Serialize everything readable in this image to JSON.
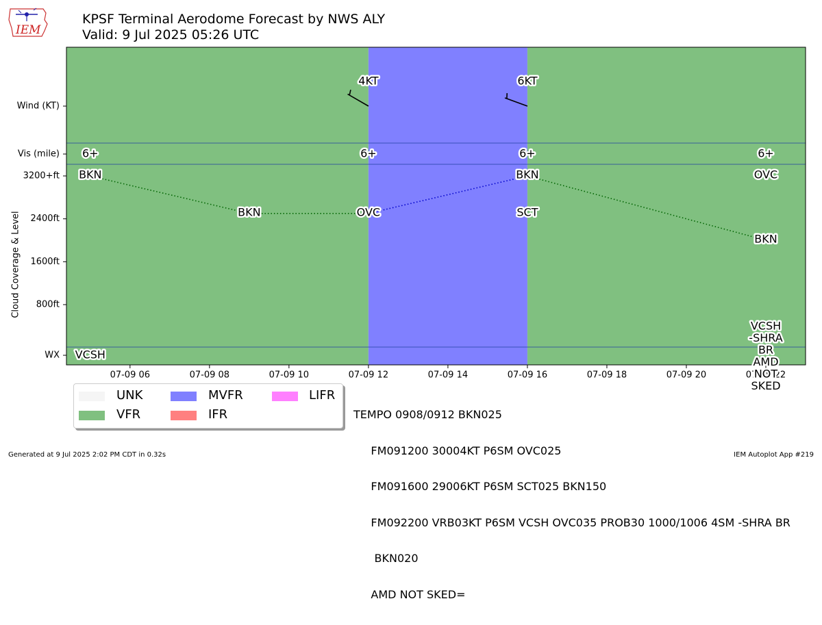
{
  "header": {
    "title_line1": "KPSF Terminal Aerodome Forecast by NWS ALY",
    "title_line2": "Valid: 9 Jul 2025 05:26 UTC"
  },
  "logo": {
    "text": "IEM"
  },
  "colors": {
    "UNK": "#f5f5f5",
    "VFR": "#80c080",
    "MVFR": "#8080ff",
    "IFR": "#ff8080",
    "LIFR": "#ff80ff"
  },
  "legend": [
    {
      "label": "UNK",
      "key": "UNK"
    },
    {
      "label": "MVFR",
      "key": "MVFR"
    },
    {
      "label": "LIFR",
      "key": "LIFR"
    },
    {
      "label": "VFR",
      "key": "VFR"
    },
    {
      "label": "IFR",
      "key": "IFR"
    }
  ],
  "taf_text": [
    "TEMPO 0908/0912 BKN025",
    "     FM091200 30004KT P6SM OVC025",
    "     FM091600 29006KT P6SM SCT025 BKN150",
    "     FM092200 VRB03KT P6SM VCSH OVC035 PROB30 1000/1006 4SM -SHRA BR",
    "      BKN020",
    "     AMD NOT SKED="
  ],
  "footer": {
    "left": "Generated at 9 Jul 2025 2:02 PM CDT in 0.32s",
    "right": "IEM Autoplot App #219"
  },
  "chart_data": {
    "type": "timeline",
    "x_axis": {
      "ticks": [
        "07-09 06",
        "07-09 08",
        "07-09 10",
        "07-09 12",
        "07-09 14",
        "07-09 16",
        "07-09 18",
        "07-09 20",
        "07-09 22"
      ],
      "tick_hours": [
        6,
        8,
        10,
        12,
        14,
        16,
        18,
        20,
        22
      ],
      "range_hours": [
        4.4,
        23.0
      ]
    },
    "y_axis": {
      "ylabel": "Cloud Coverage & Level",
      "row_labels": {
        "wind": "Wind (KT)",
        "vis": "Vis (mile)",
        "wx": "WX"
      },
      "cloud_ticks": [
        {
          "label": "3200+ft",
          "value": 3200
        },
        {
          "label": "2400ft",
          "value": 2400
        },
        {
          "label": "1600ft",
          "value": 1600
        },
        {
          "label": "800ft",
          "value": 800
        }
      ]
    },
    "categories": [
      {
        "start": 4.4,
        "end": 12.0,
        "category": "VFR"
      },
      {
        "start": 12.0,
        "end": 16.0,
        "category": "MVFR"
      },
      {
        "start": 16.0,
        "end": 23.0,
        "category": "VFR"
      }
    ],
    "wind": [
      {
        "hour": 12.0,
        "label": "4KT",
        "direction": 300,
        "speed": 4
      },
      {
        "hour": 16.0,
        "label": "6KT",
        "direction": 290,
        "speed": 6
      }
    ],
    "visibility": [
      {
        "hour": 5.0,
        "label": "6+"
      },
      {
        "hour": 12.0,
        "label": "6+"
      },
      {
        "hour": 16.0,
        "label": "6+"
      },
      {
        "hour": 22.0,
        "label": "6+"
      }
    ],
    "clouds": [
      {
        "hour": 5.0,
        "level": 3200,
        "label": "BKN"
      },
      {
        "hour": 9.0,
        "level": 2500,
        "label": "BKN"
      },
      {
        "hour": 12.0,
        "level": 2500,
        "label": "OVC"
      },
      {
        "hour": 16.0,
        "level": 2500,
        "label": "SCT"
      },
      {
        "hour": 16.0,
        "level": 3200,
        "label": "BKN"
      },
      {
        "hour": 22.0,
        "level": 3200,
        "label": "OVC"
      },
      {
        "hour": 22.0,
        "level": 2000,
        "label": "BKN"
      }
    ],
    "cloud_lines": [
      {
        "points": [
          [
            5.0,
            3200
          ],
          [
            9.0,
            2500
          ],
          [
            12.0,
            2500
          ]
        ],
        "color": "#006400"
      },
      {
        "points": [
          [
            12.0,
            2500
          ],
          [
            16.0,
            3200
          ]
        ],
        "color": "#0000cc"
      },
      {
        "points": [
          [
            16.0,
            3200
          ],
          [
            22.0,
            2000
          ]
        ],
        "color": "#006400"
      }
    ],
    "weather": [
      {
        "hour": 5.0,
        "lines": [
          "VCSH"
        ]
      },
      {
        "hour": 22.0,
        "lines": [
          "VCSH",
          "-SHRA",
          "BR",
          "AMD",
          "NOT",
          "SKED"
        ]
      }
    ]
  }
}
